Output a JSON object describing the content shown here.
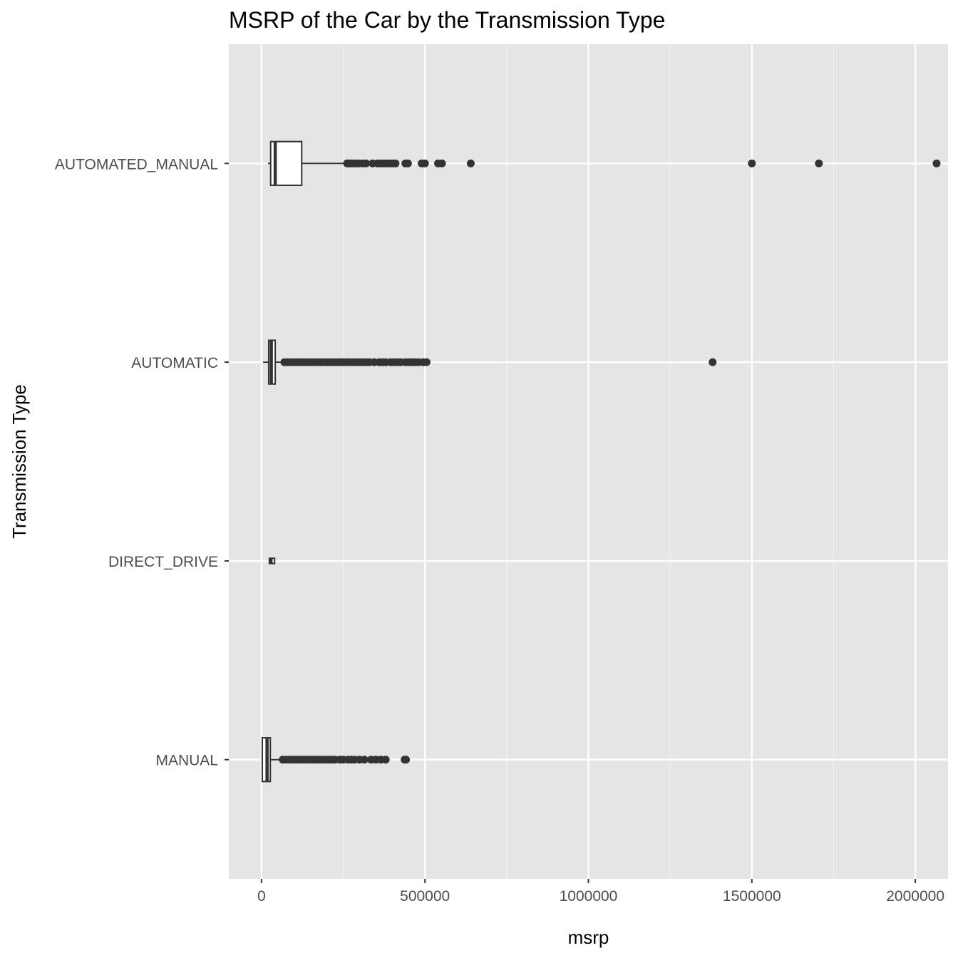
{
  "chart_data": {
    "type": "boxplot",
    "orientation": "horizontal",
    "title": "MSRP of the Car by the Transmission Type",
    "xlabel": "msrp",
    "ylabel": "Transmission Type",
    "xlim": [
      -100000,
      2100000
    ],
    "x_ticks": [
      0,
      500000,
      1000000,
      1500000,
      2000000
    ],
    "x_tick_labels": [
      "0",
      "500000",
      "1000000",
      "1500000",
      "2000000"
    ],
    "grid": true,
    "categories": [
      "AUTOMATED_MANUAL",
      "AUTOMATIC",
      "DIRECT_DRIVE",
      "MANUAL"
    ],
    "boxes": [
      {
        "category": "AUTOMATED_MANUAL",
        "whisker_low": 20000,
        "q1": 28000,
        "median": 42000,
        "q3": 123000,
        "whisker_high": 258000,
        "outliers": [
          262000,
          268000,
          275000,
          282000,
          290000,
          298000,
          310000,
          320000,
          340000,
          355000,
          365000,
          375000,
          385000,
          395000,
          402000,
          410000,
          440000,
          448000,
          490000,
          500000,
          540000,
          552000,
          640000,
          1500000,
          1705000,
          2065000
        ]
      },
      {
        "category": "AUTOMATIC",
        "whisker_low": 5000,
        "q1": 22000,
        "median": 30000,
        "q3": 42000,
        "whisker_high": 68000,
        "outliers": [
          70000,
          80000,
          90000,
          100000,
          110000,
          120000,
          130000,
          140000,
          150000,
          160000,
          170000,
          180000,
          190000,
          200000,
          210000,
          220000,
          230000,
          240000,
          250000,
          260000,
          270000,
          280000,
          290000,
          300000,
          310000,
          320000,
          330000,
          345000,
          360000,
          370000,
          380000,
          395000,
          405000,
          415000,
          425000,
          440000,
          450000,
          460000,
          470000,
          480000,
          495000,
          505000,
          1380000
        ]
      },
      {
        "category": "DIRECT_DRIVE",
        "whisker_low": 22000,
        "q1": 24000,
        "median": 29000,
        "q3": 40000,
        "whisker_high": 42000,
        "outliers": []
      },
      {
        "category": "MANUAL",
        "whisker_low": 2000,
        "q1": 2500,
        "median": 17000,
        "q3": 27000,
        "whisker_high": 62000,
        "outliers": [
          65000,
          75000,
          85000,
          95000,
          105000,
          115000,
          125000,
          135000,
          145000,
          155000,
          165000,
          175000,
          185000,
          195000,
          205000,
          215000,
          225000,
          240000,
          250000,
          265000,
          275000,
          285000,
          300000,
          315000,
          335000,
          350000,
          365000,
          380000,
          438000,
          442000
        ]
      }
    ]
  }
}
